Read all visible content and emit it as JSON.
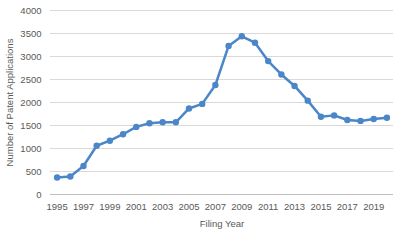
{
  "chart_data": {
    "type": "line",
    "x_label": "Filing Year",
    "y_label": "Number of Patent Applications",
    "x": [
      1995,
      1996,
      1997,
      1998,
      1999,
      2000,
      2001,
      2002,
      2003,
      2004,
      2005,
      2006,
      2007,
      2008,
      2009,
      2010,
      2011,
      2012,
      2013,
      2014,
      2015,
      2016,
      2017,
      2018,
      2019,
      2020
    ],
    "values": [
      370,
      390,
      620,
      1060,
      1170,
      1310,
      1470,
      1550,
      1570,
      1570,
      1870,
      1970,
      2380,
      3230,
      3440,
      3300,
      2900,
      2610,
      2360,
      2040,
      1690,
      1720,
      1620,
      1600,
      1640,
      1670
    ],
    "color": "#4a86c8",
    "marker": "circle",
    "xlim": [
      1994.5,
      2020.5
    ],
    "xticks": [
      1995,
      1997,
      1999,
      2001,
      2003,
      2005,
      2007,
      2009,
      2011,
      2013,
      2015,
      2017,
      2019
    ],
    "ylim": [
      0,
      4000
    ],
    "yticks": [
      0,
      500,
      1000,
      1500,
      2000,
      2500,
      3000,
      3500,
      4000
    ],
    "grid": true
  }
}
